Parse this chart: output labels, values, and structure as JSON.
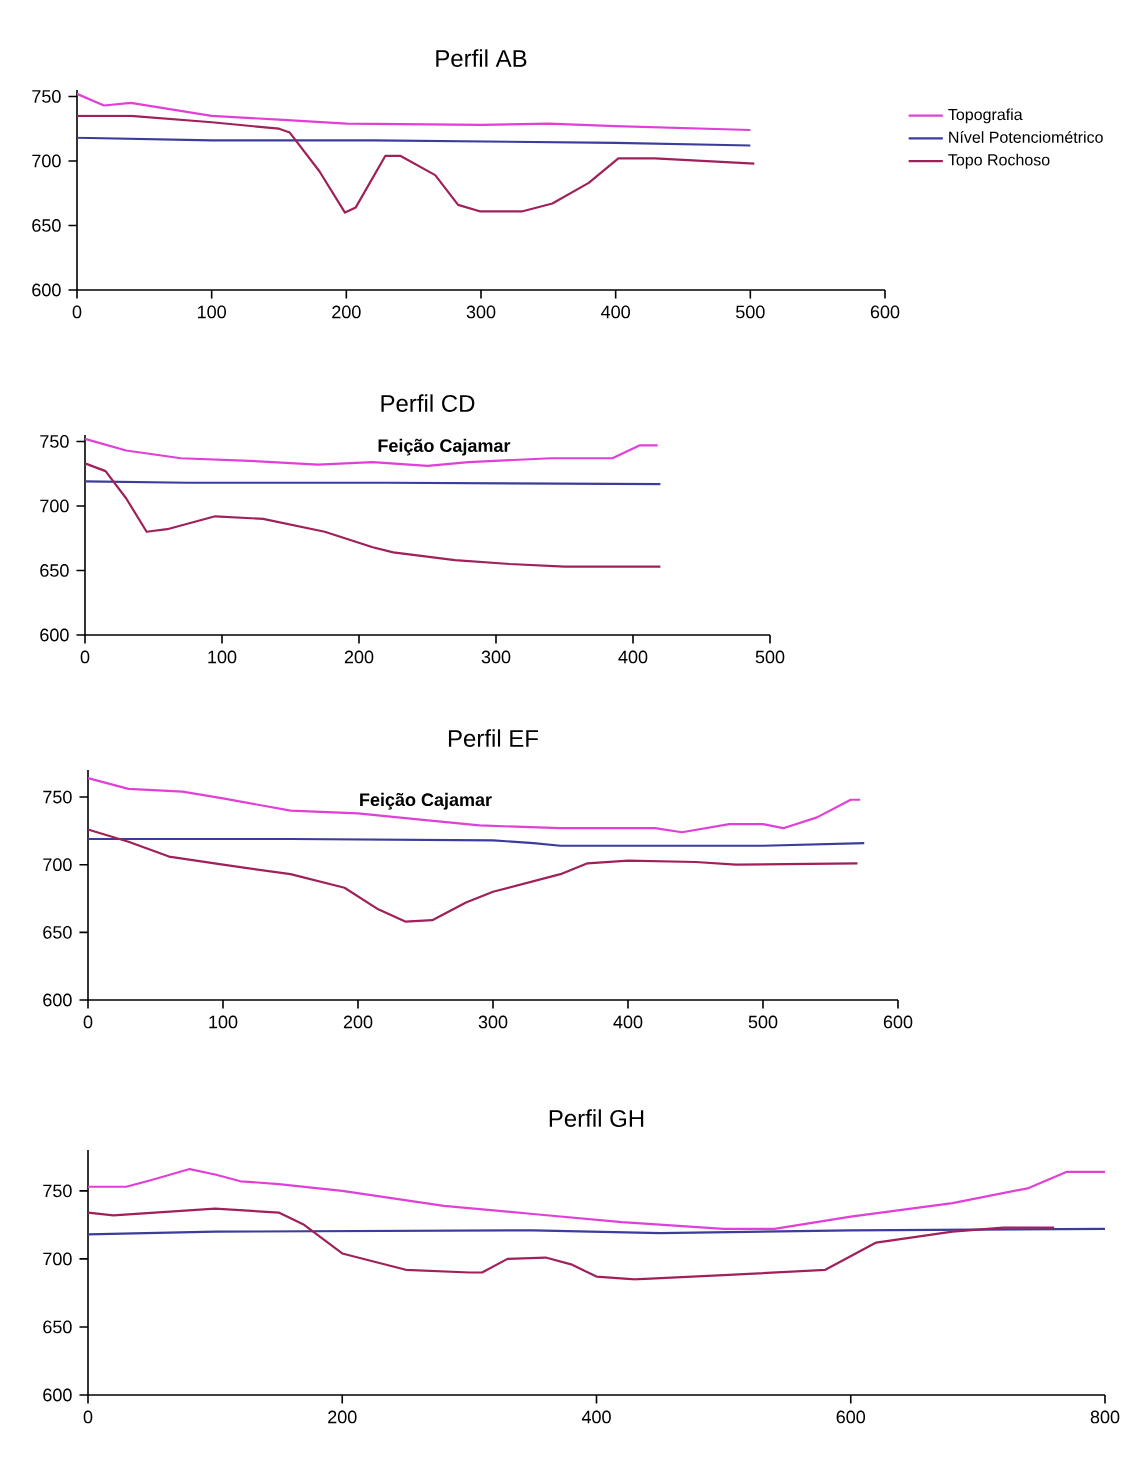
{
  "chart_data": [
    {
      "type": "line",
      "title": "Perfil AB",
      "xlim": [
        0,
        600
      ],
      "ylim": [
        600,
        755
      ],
      "xticks": [
        0,
        100,
        200,
        300,
        400,
        500,
        600
      ],
      "yticks": [
        600,
        650,
        700,
        750
      ],
      "legend": "right",
      "series": [
        {
          "name": "Topografia",
          "color": "#e040d8",
          "x": [
            0,
            20,
            40,
            100,
            150,
            200,
            300,
            350,
            400,
            500
          ],
          "values": [
            752,
            743,
            745,
            735,
            732,
            729,
            728,
            729,
            727,
            724
          ]
        },
        {
          "name": "Nível Potenciométrico",
          "color": "#3c3c9c",
          "x": [
            0,
            100,
            220,
            400,
            500
          ],
          "values": [
            718,
            716,
            716,
            714,
            712
          ]
        },
        {
          "name": "Topo Rochoso",
          "color": "#a0205a",
          "x": [
            0,
            40,
            100,
            150,
            158,
            180,
            199,
            207,
            229,
            240,
            266,
            283,
            299,
            331,
            353,
            380,
            402,
            429,
            503
          ],
          "values": [
            735,
            735,
            730,
            725,
            722,
            692,
            660,
            664,
            704,
            704,
            689,
            666,
            661,
            661,
            667,
            683,
            702,
            702,
            698
          ]
        }
      ]
    },
    {
      "type": "line",
      "title": "Perfil CD",
      "xlim": [
        0,
        500
      ],
      "ylim": [
        600,
        755
      ],
      "xticks": [
        0,
        100,
        200,
        300,
        400,
        500
      ],
      "yticks": [
        600,
        650,
        700,
        750
      ],
      "annotations": [
        {
          "text": "Feição Cajamar",
          "x": 262,
          "y": 731
        }
      ],
      "series": [
        {
          "color": "#e040d8",
          "x": [
            0,
            30,
            70,
            120,
            170,
            210,
            250,
            280,
            340,
            385,
            405,
            418
          ],
          "values": [
            752,
            743,
            737,
            735,
            732,
            734,
            731,
            734,
            737,
            737,
            747,
            747
          ]
        },
        {
          "color": "#3c3c9c",
          "x": [
            0,
            75,
            220,
            420
          ],
          "values": [
            719,
            718,
            718,
            717
          ]
        },
        {
          "color": "#a0205a",
          "x": [
            0,
            15,
            30,
            45,
            60,
            95,
            130,
            175,
            210,
            225,
            270,
            310,
            350,
            420
          ],
          "values": [
            733,
            727,
            706,
            680,
            682,
            692,
            690,
            680,
            668,
            664,
            658,
            655,
            653,
            653
          ]
        }
      ]
    },
    {
      "type": "line",
      "title": "Perfil EF",
      "xlim": [
        0,
        600
      ],
      "ylim": [
        600,
        770
      ],
      "xticks": [
        0,
        100,
        200,
        300,
        400,
        500,
        600
      ],
      "yticks": [
        600,
        650,
        700,
        750
      ],
      "annotations": [
        {
          "text": "Feição Cajamar",
          "x": 250,
          "y": 733
        }
      ],
      "series": [
        {
          "color": "#e040d8",
          "x": [
            0,
            30,
            70,
            100,
            150,
            200,
            250,
            290,
            350,
            420,
            440,
            475,
            500,
            515,
            540,
            565,
            572
          ],
          "values": [
            764,
            756,
            754,
            749,
            740,
            738,
            733,
            729,
            727,
            727,
            724,
            730,
            730,
            727,
            735,
            748,
            748
          ]
        },
        {
          "color": "#3c3c9c",
          "x": [
            0,
            150,
            300,
            330,
            350,
            500,
            575
          ],
          "values": [
            719,
            719,
            718,
            716,
            714,
            714,
            716
          ]
        },
        {
          "color": "#a0205a",
          "x": [
            0,
            30,
            60,
            100,
            150,
            190,
            215,
            235,
            255,
            280,
            300,
            350,
            370,
            400,
            450,
            480,
            570
          ],
          "values": [
            726,
            717,
            706,
            700,
            693,
            683,
            667,
            658,
            659,
            672,
            680,
            693,
            701,
            703,
            702,
            700,
            701
          ]
        }
      ]
    },
    {
      "type": "line",
      "title": "Perfil GH",
      "xlim": [
        0,
        800
      ],
      "ylim": [
        600,
        780
      ],
      "xticks": [
        0,
        200,
        400,
        600,
        800
      ],
      "yticks": [
        600,
        650,
        700,
        750
      ],
      "series": [
        {
          "color": "#e040d8",
          "x": [
            0,
            30,
            50,
            80,
            100,
            120,
            150,
            200,
            280,
            350,
            420,
            500,
            540,
            600,
            680,
            740,
            770,
            800
          ],
          "values": [
            753,
            753,
            758,
            766,
            762,
            757,
            755,
            750,
            739,
            733,
            727,
            722,
            722,
            731,
            741,
            752,
            764,
            764
          ]
        },
        {
          "color": "#3c3c9c",
          "x": [
            0,
            100,
            350,
            450,
            600,
            800
          ],
          "values": [
            718,
            720,
            721,
            719,
            721,
            722
          ]
        },
        {
          "color": "#a0205a",
          "x": [
            0,
            20,
            100,
            150,
            170,
            200,
            250,
            300,
            310,
            330,
            360,
            380,
            400,
            430,
            500,
            580,
            620,
            680,
            720,
            760
          ],
          "values": [
            734,
            732,
            737,
            734,
            725,
            704,
            692,
            690,
            690,
            700,
            701,
            696,
            687,
            685,
            688,
            692,
            712,
            720,
            723,
            723
          ]
        }
      ]
    }
  ]
}
